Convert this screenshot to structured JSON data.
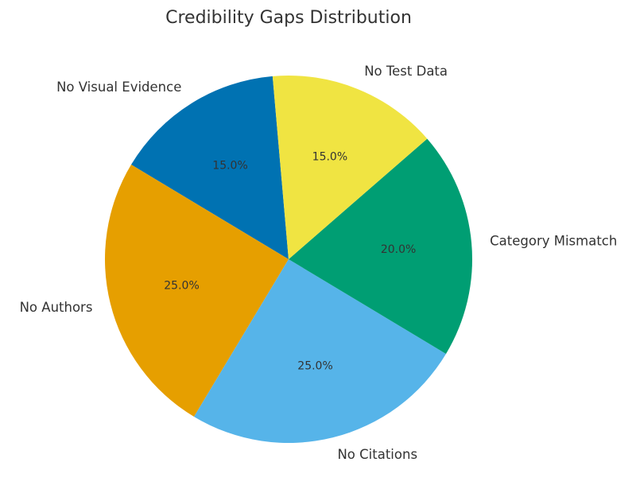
{
  "chart_data": {
    "type": "pie",
    "title": "Credibility Gaps Distribution",
    "start_angle_deg": 95,
    "direction": "counterclockwise",
    "slices": [
      {
        "label": "No Visual Evidence",
        "value": 15.0,
        "pct_label": "15.0%",
        "color": "#0072B2"
      },
      {
        "label": "No Authors",
        "value": 25.0,
        "pct_label": "25.0%",
        "color": "#E69F00"
      },
      {
        "label": "No Citations",
        "value": 25.0,
        "pct_label": "25.0%",
        "color": "#56B4E9"
      },
      {
        "label": "Category Mismatch",
        "value": 20.0,
        "pct_label": "20.0%",
        "color": "#009E73"
      },
      {
        "label": "No Test Data",
        "value": 15.0,
        "pct_label": "15.0%",
        "color": "#F0E442"
      }
    ]
  }
}
